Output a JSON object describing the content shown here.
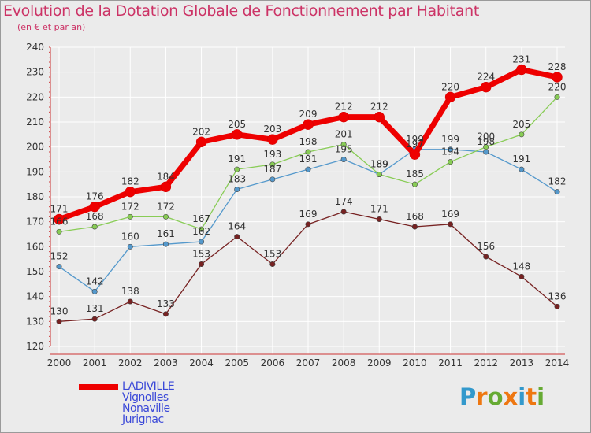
{
  "title": "Evolution de la Dotation Globale de Fonctionnement par Habitant",
  "subtitle": "(en € et par an)",
  "logo": {
    "letters": [
      "P",
      "r",
      "o",
      "x",
      "i",
      "t",
      "i"
    ],
    "colors": [
      "#3399cc",
      "#ee7711",
      "#66aa33",
      "#ee7711",
      "#3399cc",
      "#ee7711",
      "#66aa33"
    ]
  },
  "chart_data": {
    "type": "line",
    "title": "Evolution de la Dotation Globale de Fonctionnement par Habitant",
    "subtitle": "(en € et par an)",
    "x": [
      2000,
      2001,
      2002,
      2003,
      2004,
      2005,
      2006,
      2007,
      2008,
      2009,
      2010,
      2011,
      2012,
      2013,
      2014
    ],
    "ylim": [
      120,
      240
    ],
    "yticks": [
      120,
      130,
      140,
      150,
      160,
      170,
      180,
      190,
      200,
      210,
      220,
      230,
      240
    ],
    "grid": true,
    "legend_position": "bottom-left",
    "series": [
      {
        "name": "LADIVILLE",
        "color": "#ee0000",
        "values": [
          171,
          176,
          182,
          184,
          202,
          205,
          203,
          209,
          212,
          212,
          197,
          220,
          224,
          231,
          228
        ]
      },
      {
        "name": "Vignolles",
        "color": "#5599cc",
        "values": [
          152,
          142,
          160,
          161,
          162,
          183,
          187,
          191,
          195,
          189,
          199,
          199,
          198,
          191,
          182
        ]
      },
      {
        "name": "Nonaville",
        "color": "#88cc55",
        "values": [
          166,
          168,
          172,
          172,
          167,
          191,
          193,
          198,
          201,
          189,
          185,
          194,
          200,
          205,
          220
        ]
      },
      {
        "name": "Jurignac",
        "color": "#772222",
        "values": [
          130,
          131,
          138,
          133,
          153,
          164,
          153,
          169,
          174,
          171,
          168,
          169,
          156,
          148,
          136
        ]
      }
    ]
  }
}
